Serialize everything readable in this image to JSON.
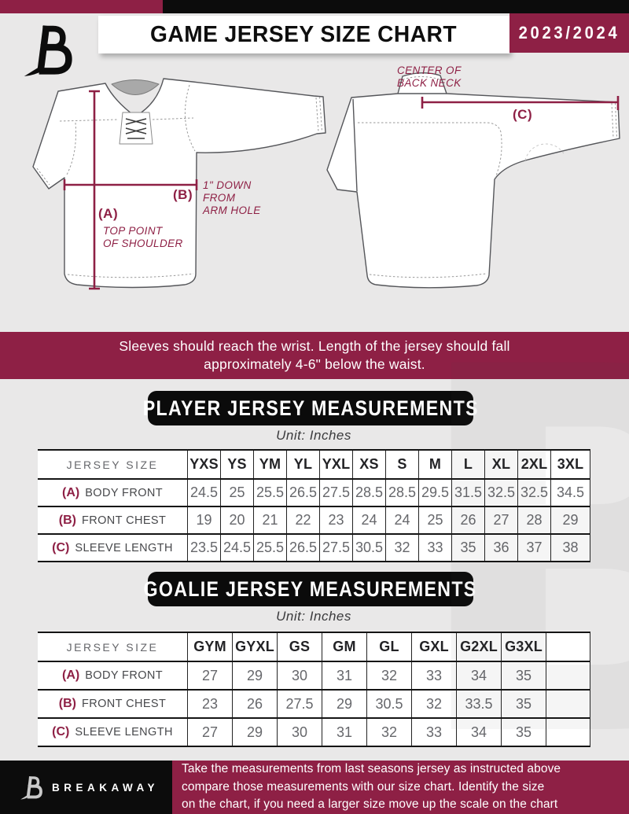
{
  "colors": {
    "maroon": "#8e2045",
    "black": "#0c0c0c",
    "background": "#e9e8e8",
    "table_value_gray": "#66676b"
  },
  "header": {
    "title": "GAME JERSEY SIZE CHART",
    "season": "2023/2024",
    "brand_glyph": "B"
  },
  "diagram": {
    "back_neck_lines": [
      "CENTER OF",
      "BACK NECK"
    ],
    "a_key": "(A)",
    "a_lines": [
      "TOP POINT",
      "OF SHOULDER"
    ],
    "b_key": "(B)",
    "b_lines": [
      "1\" DOWN",
      "FROM",
      "ARM HOLE"
    ],
    "c_key": "(C)"
  },
  "notice_lines": [
    "Sleeves should reach the wrist. Length of the jersey should fall",
    "approximately 4-6\" below the waist."
  ],
  "player_table": {
    "title": "PLAYER JERSEY MEASUREMENTS",
    "unit": "Unit: Inches",
    "size_col_header": "JERSEY SIZE",
    "sizes": [
      "YXS",
      "YS",
      "YM",
      "YL",
      "YXL",
      "XS",
      "S",
      "M",
      "L",
      "XL",
      "2XL",
      "3XL"
    ],
    "rows": [
      {
        "key": "(A)",
        "label": "BODY FRONT",
        "values": [
          "24.5",
          "25",
          "25.5",
          "26.5",
          "27.5",
          "28.5",
          "28.5",
          "29.5",
          "31.5",
          "32.5",
          "32.5",
          "34.5"
        ]
      },
      {
        "key": "(B)",
        "label": "FRONT CHEST",
        "values": [
          "19",
          "20",
          "21",
          "22",
          "23",
          "24",
          "24",
          "25",
          "26",
          "27",
          "28",
          "29"
        ]
      },
      {
        "key": "(C)",
        "label": "SLEEVE LENGTH",
        "values": [
          "23.5",
          "24.5",
          "25.5",
          "26.5",
          "27.5",
          "30.5",
          "32",
          "33",
          "35",
          "36",
          "37",
          "38"
        ]
      }
    ]
  },
  "goalie_table": {
    "title": "GOALIE JERSEY MEASUREMENTS",
    "unit": "Unit: Inches",
    "size_col_header": "JERSEY SIZE",
    "sizes": [
      "GYM",
      "GYXL",
      "GS",
      "GM",
      "GL",
      "GXL",
      "G2XL",
      "G3XL",
      ""
    ],
    "rows": [
      {
        "key": "(A)",
        "label": "BODY FRONT",
        "values": [
          "27",
          "29",
          "30",
          "31",
          "32",
          "33",
          "34",
          "35",
          ""
        ]
      },
      {
        "key": "(B)",
        "label": "FRONT CHEST",
        "values": [
          "23",
          "26",
          "27.5",
          "29",
          "30.5",
          "32",
          "33.5",
          "35",
          ""
        ]
      },
      {
        "key": "(C)",
        "label": "SLEEVE LENGTH",
        "values": [
          "27",
          "29",
          "30",
          "31",
          "32",
          "33",
          "34",
          "35",
          ""
        ]
      }
    ]
  },
  "footer": {
    "brand": "BREAKAWAY",
    "note_lines": [
      "Take the measurements from last seasons jersey as instructed above",
      "compare those measurements  with our size chart. Identify the size",
      "on the chart, if you need a larger size move up the scale on the chart"
    ]
  }
}
